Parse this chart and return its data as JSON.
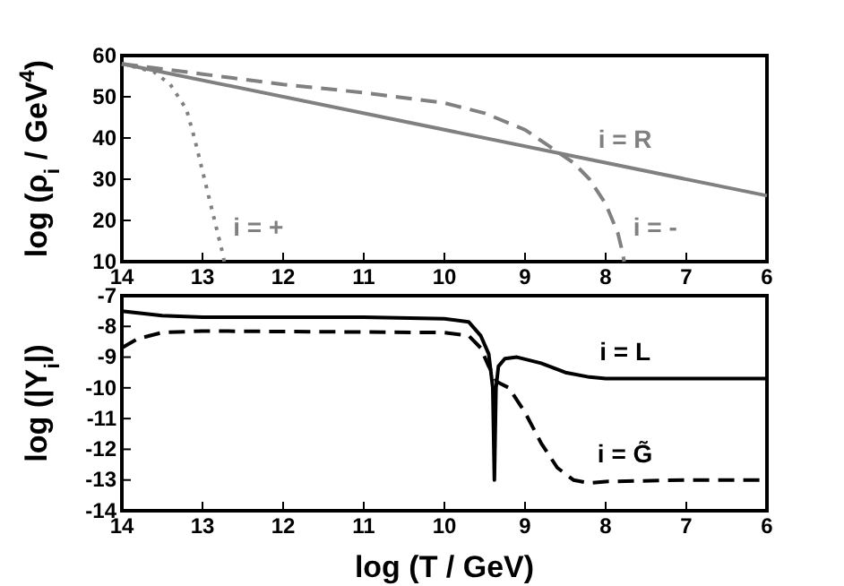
{
  "chart_data": [
    {
      "type": "line",
      "ylabel": "log (ρ$_{i}$ / GeV$^{4}$)",
      "xlim": [
        14,
        6
      ],
      "xticks": [
        14,
        13,
        12,
        11,
        10,
        9,
        8,
        7,
        6
      ],
      "ylim": [
        10,
        60
      ],
      "yticks": [
        10,
        20,
        30,
        40,
        50,
        60
      ],
      "grid": false,
      "series": [
        {
          "name": "i = R",
          "color": "#808080",
          "line_style": "solid",
          "x": [
            14,
            6
          ],
          "values": [
            58,
            26
          ]
        },
        {
          "name": "i = -",
          "color": "#808080",
          "line_style": "dashed",
          "x": [
            14,
            13,
            12,
            11,
            10,
            9.5,
            9,
            8.7,
            8.4,
            8.2,
            8,
            7.85,
            7.8,
            7.77
          ],
          "values": [
            58,
            55.5,
            53,
            51,
            48.5,
            46,
            42,
            38,
            34,
            30,
            24,
            17,
            13,
            10
          ]
        },
        {
          "name": "i = +",
          "color": "#808080",
          "line_style": "dotted",
          "x": [
            14,
            13.6,
            13.4,
            13.2,
            13.1,
            13,
            12.9,
            12.8,
            12.75,
            12.73
          ],
          "values": [
            58,
            56,
            53,
            47,
            40,
            32,
            24,
            16,
            12,
            10
          ]
        }
      ]
    },
    {
      "type": "line",
      "xlabel": "log (T / GeV)",
      "ylabel": "log (|Y$_{i}$|)",
      "xlim": [
        14,
        6
      ],
      "xticks": [
        14,
        13,
        12,
        11,
        10,
        9,
        8,
        7,
        6
      ],
      "ylim": [
        -14,
        -7
      ],
      "yticks": [
        -14,
        -13,
        -12,
        -11,
        -10,
        -9,
        -8,
        -7
      ],
      "grid": false,
      "series": [
        {
          "name": "i = L",
          "color": "#000000",
          "line_style": "solid",
          "x": [
            14,
            13.5,
            13,
            11,
            10,
            9.7,
            9.55,
            9.45,
            9.4,
            9.38,
            9.36,
            9.33,
            9.25,
            9.1,
            8.8,
            8.5,
            8.2,
            8,
            6
          ],
          "values": [
            -7.5,
            -7.65,
            -7.7,
            -7.7,
            -7.75,
            -7.85,
            -8.3,
            -8.9,
            -10,
            -13,
            -10,
            -9.3,
            -9.05,
            -9,
            -9.2,
            -9.5,
            -9.65,
            -9.7,
            -9.7
          ]
        },
        {
          "name": "i = G̃",
          "color": "#000000",
          "line_style": "dashed",
          "x": [
            14,
            13.8,
            13.5,
            13,
            10,
            9.7,
            9.55,
            9.45,
            9.35,
            9.2,
            9,
            8.8,
            8.6,
            8.4,
            8.2,
            8,
            7,
            6
          ],
          "values": [
            -8.7,
            -8.4,
            -8.2,
            -8.15,
            -8.2,
            -8.3,
            -8.7,
            -9.3,
            -9.8,
            -10,
            -10.8,
            -11.8,
            -12.6,
            -13,
            -13.1,
            -13.05,
            -13,
            -13
          ]
        }
      ]
    }
  ]
}
